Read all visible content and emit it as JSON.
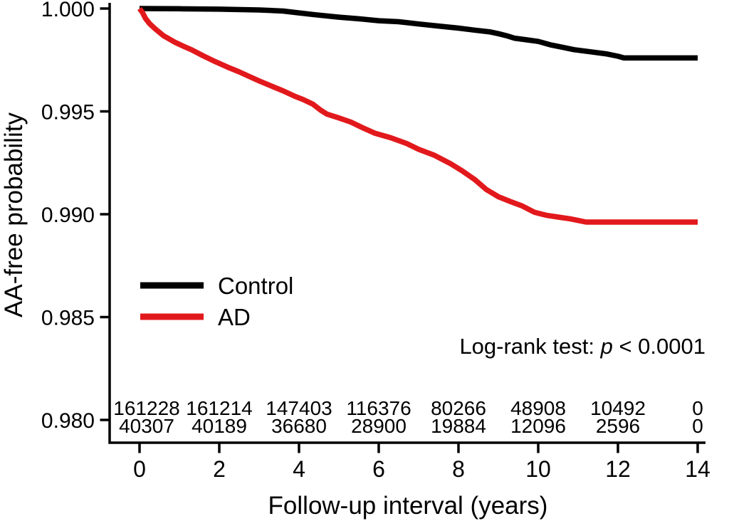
{
  "figure": {
    "background": "#ffffff",
    "axis_color": "#000000",
    "y_axis": {
      "label": "AA-free probability",
      "tick_labels": [
        "1.000",
        "0.995",
        "0.990",
        "0.985",
        "0.980"
      ],
      "tick_values": [
        1.0,
        0.995,
        0.99,
        0.985,
        0.98
      ]
    },
    "x_axis": {
      "label": "Follow-up interval (years)",
      "tick_labels": [
        "0",
        "2",
        "4",
        "6",
        "8",
        "10",
        "12",
        "14"
      ],
      "tick_values": [
        0,
        2,
        4,
        6,
        8,
        10,
        12,
        14
      ]
    },
    "legend": [
      {
        "label": "Control",
        "color": "#000000"
      },
      {
        "label": "AD",
        "color": "#e2191c"
      }
    ],
    "annotation": {
      "prefix": "Log-rank test: ",
      "p": "p",
      "suffix": " < 0.0001"
    }
  },
  "chart_data": {
    "type": "line",
    "subtype": "kaplan-meier-survival",
    "title": "",
    "xlabel": "Follow-up interval (years)",
    "ylabel": "AA-free probability",
    "xlim": [
      0,
      14
    ],
    "ylim": [
      0.98,
      1.0
    ],
    "grid": false,
    "legend_position": "center-left",
    "annotation": "Log-rank test: p < 0.0001",
    "series": [
      {
        "name": "Control",
        "color": "#000000",
        "points": [
          [
            0,
            1.0
          ],
          [
            1,
            0.99999
          ],
          [
            2,
            0.99997
          ],
          [
            3,
            0.99993
          ],
          [
            3.6,
            0.99988
          ],
          [
            4,
            0.99979
          ],
          [
            4.4,
            0.9997
          ],
          [
            5,
            0.99958
          ],
          [
            5.5,
            0.9995
          ],
          [
            6,
            0.99941
          ],
          [
            6.5,
            0.99936
          ],
          [
            7,
            0.99925
          ],
          [
            7.5,
            0.99915
          ],
          [
            8,
            0.99905
          ],
          [
            8.4,
            0.99895
          ],
          [
            8.8,
            0.99886
          ],
          [
            9.0,
            0.99878
          ],
          [
            9.2,
            0.99868
          ],
          [
            9.4,
            0.99856
          ],
          [
            9.7,
            0.99848
          ],
          [
            10,
            0.9984
          ],
          [
            10.3,
            0.99824
          ],
          [
            10.6,
            0.99812
          ],
          [
            10.9,
            0.998
          ],
          [
            11.3,
            0.9979
          ],
          [
            11.7,
            0.9978
          ],
          [
            12.0,
            0.99768
          ],
          [
            12.15,
            0.9976
          ],
          [
            14,
            0.9976
          ]
        ]
      },
      {
        "name": "AD",
        "color": "#e2191c",
        "points": [
          [
            0,
            1.0
          ],
          [
            0.07,
            0.99982
          ],
          [
            0.15,
            0.99952
          ],
          [
            0.25,
            0.99927
          ],
          [
            0.4,
            0.999
          ],
          [
            0.6,
            0.99868
          ],
          [
            0.9,
            0.99835
          ],
          [
            1.1,
            0.99817
          ],
          [
            1.3,
            0.998
          ],
          [
            1.6,
            0.9977
          ],
          [
            1.9,
            0.99742
          ],
          [
            2.2,
            0.99716
          ],
          [
            2.5,
            0.99692
          ],
          [
            2.75,
            0.9967
          ],
          [
            3.0,
            0.99648
          ],
          [
            3.3,
            0.99624
          ],
          [
            3.6,
            0.996
          ],
          [
            3.9,
            0.99573
          ],
          [
            4.1,
            0.99558
          ],
          [
            4.35,
            0.99535
          ],
          [
            4.55,
            0.99505
          ],
          [
            4.7,
            0.99487
          ],
          [
            5.0,
            0.99468
          ],
          [
            5.3,
            0.99448
          ],
          [
            5.6,
            0.9942
          ],
          [
            5.9,
            0.99394
          ],
          [
            6.3,
            0.99372
          ],
          [
            6.7,
            0.99344
          ],
          [
            7.0,
            0.99316
          ],
          [
            7.4,
            0.99286
          ],
          [
            7.8,
            0.99246
          ],
          [
            8.1,
            0.9921
          ],
          [
            8.4,
            0.9917
          ],
          [
            8.7,
            0.9912
          ],
          [
            9.0,
            0.99085
          ],
          [
            9.3,
            0.99062
          ],
          [
            9.6,
            0.9904
          ],
          [
            9.9,
            0.9901
          ],
          [
            10.2,
            0.98995
          ],
          [
            10.5,
            0.98986
          ],
          [
            10.8,
            0.98978
          ],
          [
            11.0,
            0.9897
          ],
          [
            11.2,
            0.98962
          ],
          [
            14,
            0.98962
          ]
        ]
      }
    ],
    "at_risk": {
      "times": [
        0,
        2,
        4,
        6,
        8,
        10,
        12,
        14
      ],
      "rows": [
        {
          "name": "Control",
          "color": "#000000",
          "counts": [
            161228,
            161214,
            147403,
            116376,
            80266,
            48908,
            10492,
            0
          ]
        },
        {
          "name": "AD",
          "color": "#e2191c",
          "counts": [
            40307,
            40189,
            36680,
            28900,
            19884,
            12096,
            2596,
            0
          ]
        }
      ]
    }
  }
}
